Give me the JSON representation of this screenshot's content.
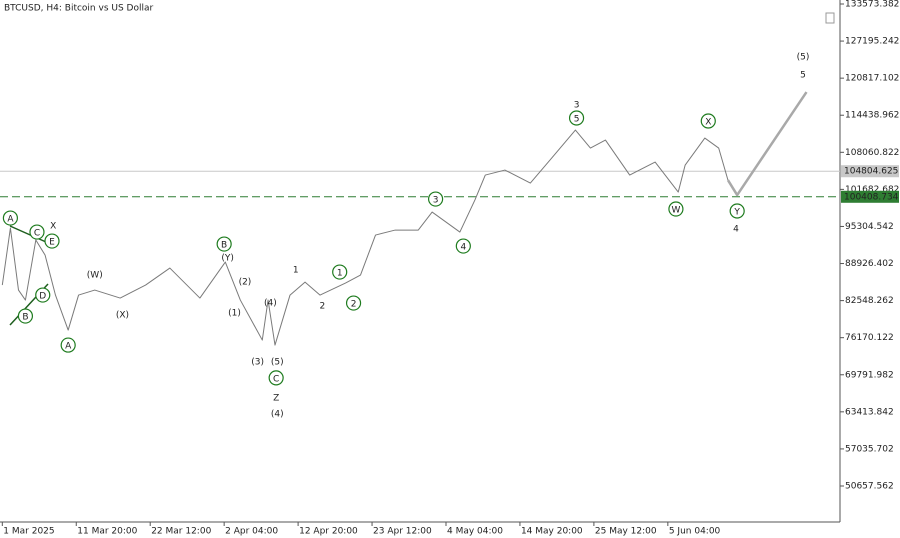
{
  "chart_data": {
    "type": "line",
    "title": "BTCUSD, H4:  Bitcoin vs US Dollar",
    "xlim": [
      -2,
      725
    ],
    "ylim": [
      44463,
      134261
    ],
    "xticks": [
      {
        "value": 0,
        "label": "1 Mar 2025"
      },
      {
        "value": 64,
        "label": "11 Mar 20:00"
      },
      {
        "value": 128,
        "label": "22 Mar 12:00"
      },
      {
        "value": 192,
        "label": "2 Apr 04:00"
      },
      {
        "value": 256,
        "label": "12 Apr 20:00"
      },
      {
        "value": 320,
        "label": "23 Apr 12:00"
      },
      {
        "value": 384,
        "label": "4 May 04:00"
      },
      {
        "value": 448,
        "label": "14 May 20:00"
      },
      {
        "value": 512,
        "label": "25 May 12:00"
      },
      {
        "value": 576,
        "label": "5 Jun 04:00"
      }
    ],
    "yticks": [
      133573.382,
      127195.242,
      120817.102,
      114438.962,
      108060.822,
      101682.682,
      95304.542,
      88926.402,
      82548.262,
      76170.122,
      69791.982,
      63413.842,
      57035.702,
      50657.562
    ],
    "series": [
      {
        "color": "#7a7a7a",
        "width": 1,
        "x": [
          0,
          7,
          14,
          20,
          29,
          37,
          46,
          57,
          66,
          80,
          102,
          124,
          145,
          171,
          193,
          206,
          225,
          230,
          236,
          249,
          262,
          275,
          297,
          310,
          323,
          340,
          360,
          372,
          396,
          409,
          418,
          435,
          457,
          474,
          496,
          509,
          522,
          543,
          565,
          585,
          591,
          608,
          620,
          628
        ],
        "values": [
          85222,
          95032,
          84364,
          82643,
          92967,
          90386,
          83500,
          77482,
          83500,
          84364,
          82989,
          85224,
          88149,
          82989,
          89180,
          82643,
          75760,
          82643,
          74900,
          83500,
          85737,
          83500,
          85565,
          86941,
          93824,
          94684,
          94684,
          97781,
          94340,
          99846,
          104148,
          105008,
          102771,
          106728,
          111890,
          108793,
          110170,
          104148,
          106385,
          101223,
          105869,
          110514,
          108793,
          103289
        ]
      },
      {
        "color": "#a9a9a9",
        "width": 2.5,
        "x": [
          628,
          636,
          696
        ],
        "values": [
          103289,
          100706,
          118431
        ]
      }
    ],
    "price_lines": [
      {
        "value": 104804.625,
        "color": "#c8c8c8",
        "style": "solid"
      },
      {
        "value": 100408.734,
        "color": "#2e7d32",
        "style": "dashed"
      }
    ],
    "annotations": [
      {
        "text": "A",
        "x": 7,
        "y": 96752,
        "style": "circle",
        "color": "#1e7b1e"
      },
      {
        "text": "B",
        "x": 20,
        "y": 79890,
        "style": "circle",
        "color": "#1e7b1e"
      },
      {
        "text": "C",
        "x": 30,
        "y": 94343,
        "style": "circle",
        "color": "#1e7b1e"
      },
      {
        "text": "D",
        "x": 35,
        "y": 83503,
        "style": "circle",
        "color": "#1e7b1e"
      },
      {
        "text": "E",
        "x": 43,
        "y": 92795,
        "style": "circle",
        "color": "#1e7b1e"
      },
      {
        "text": "X",
        "x": 44,
        "y": 95376,
        "style": "large",
        "color": "#8b0000"
      },
      {
        "text": "A",
        "x": 57,
        "y": 74900,
        "style": "circle",
        "color": "#1e7b1e"
      },
      {
        "text": "(W)",
        "x": 80,
        "y": 86945,
        "style": "plain",
        "color": "#1a1a7a"
      },
      {
        "text": "(X)",
        "x": 104,
        "y": 80062,
        "style": "plain",
        "color": "#1a1a7a"
      },
      {
        "text": "B",
        "x": 192,
        "y": 92278,
        "style": "circle",
        "color": "#1e7b1e"
      },
      {
        "text": "(Y)",
        "x": 195,
        "y": 89869,
        "style": "plain",
        "color": "#1a1a7a"
      },
      {
        "text": "(1)",
        "x": 201,
        "y": 80406,
        "style": "plain",
        "color": "#1a1a7a"
      },
      {
        "text": "(2)",
        "x": 210,
        "y": 85740,
        "style": "plain",
        "color": "#1a1a7a"
      },
      {
        "text": "(4)",
        "x": 232,
        "y": 82127,
        "style": "plain",
        "color": "#1a1a7a"
      },
      {
        "text": "(3)",
        "x": 221,
        "y": 72008,
        "style": "plain",
        "color": "#1a1a7a"
      },
      {
        "text": "(5)",
        "x": 238,
        "y": 72008,
        "style": "plain",
        "color": "#1a1a7a"
      },
      {
        "text": "C",
        "x": 237,
        "y": 69255,
        "style": "circle",
        "color": "#1e7b1e"
      },
      {
        "text": "Z",
        "x": 237,
        "y": 65814,
        "style": "large",
        "color": "#8b0000"
      },
      {
        "text": "(4)",
        "x": 238,
        "y": 63061,
        "style": "large",
        "color": "#1a1a7a"
      },
      {
        "text": "1",
        "x": 254,
        "y": 87805,
        "style": "large",
        "color": "#8b0000"
      },
      {
        "text": "2",
        "x": 277,
        "y": 81611,
        "style": "large",
        "color": "#8b0000"
      },
      {
        "text": "1",
        "x": 292,
        "y": 87461,
        "style": "circle",
        "color": "#1e7b1e"
      },
      {
        "text": "2",
        "x": 304,
        "y": 82127,
        "style": "circle",
        "color": "#1e7b1e"
      },
      {
        "text": "3",
        "x": 375,
        "y": 100021,
        "style": "circle",
        "color": "#1e7b1e"
      },
      {
        "text": "4",
        "x": 399,
        "y": 91934,
        "style": "circle",
        "color": "#1e7b1e"
      },
      {
        "text": "3",
        "x": 497,
        "y": 116195,
        "style": "large",
        "color": "#8b0000"
      },
      {
        "text": "5",
        "x": 497,
        "y": 113958,
        "style": "circle",
        "color": "#1e7b1e"
      },
      {
        "text": "X",
        "x": 611,
        "y": 113442,
        "style": "circle",
        "color": "#1e7b1e"
      },
      {
        "text": "W",
        "x": 583,
        "y": 98301,
        "style": "circle",
        "color": "#1e7b1e"
      },
      {
        "text": "Y",
        "x": 636,
        "y": 97957,
        "style": "circle",
        "color": "#1e7b1e"
      },
      {
        "text": "4",
        "x": 635,
        "y": 94860,
        "style": "large",
        "color": "#8b0000"
      },
      {
        "text": "(5)",
        "x": 693,
        "y": 124454,
        "style": "large",
        "color": "#1a1a7a"
      },
      {
        "text": "5",
        "x": 693,
        "y": 121357,
        "style": "large",
        "color": "#8b0000"
      }
    ]
  }
}
